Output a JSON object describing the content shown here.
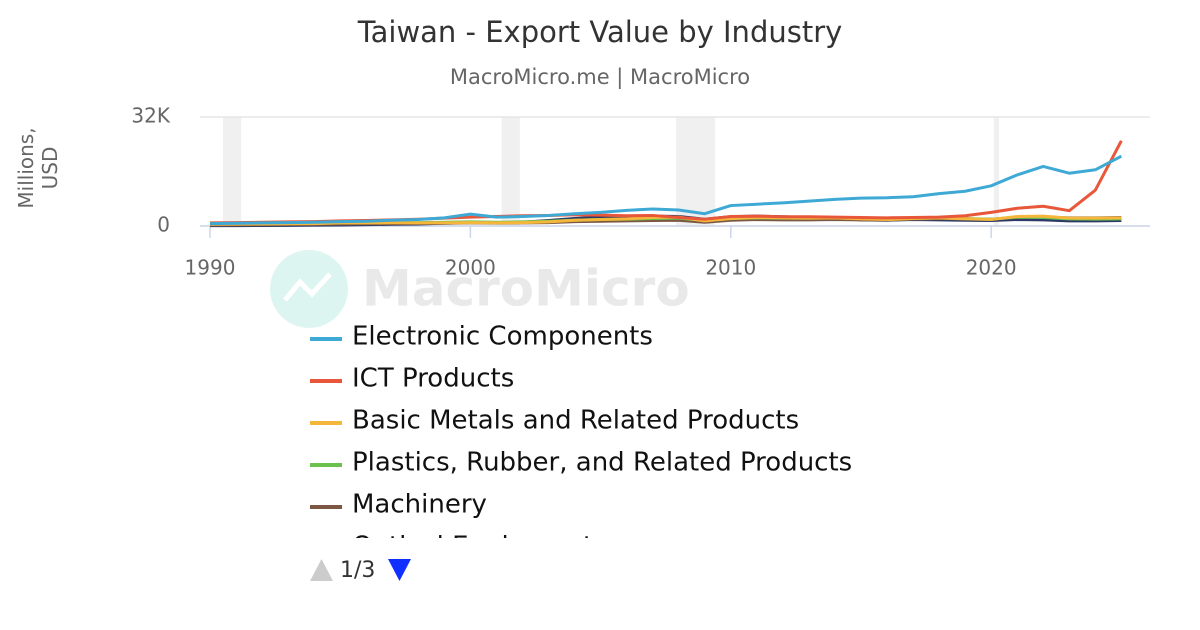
{
  "chart_data": {
    "type": "line",
    "title": "Taiwan - Export Value by Industry",
    "subtitle": "MacroMicro.me | MacroMicro",
    "watermark": "MacroMicro",
    "y_label": "Millions, USD",
    "legend_page": "1/3",
    "x": [
      1990,
      1991,
      1992,
      1993,
      1994,
      1995,
      1996,
      1997,
      1998,
      1999,
      2000,
      2001,
      2002,
      2003,
      2004,
      2005,
      2006,
      2007,
      2008,
      2009,
      2010,
      2011,
      2012,
      2013,
      2014,
      2015,
      2016,
      2017,
      2018,
      2019,
      2020,
      2021,
      2022,
      2023,
      2024,
      2025
    ],
    "xlim": [
      1990,
      2026.1
    ],
    "xticks": [
      1990,
      2000,
      2010,
      2020
    ],
    "ylim": [
      0,
      32000
    ],
    "yticks": [
      0,
      {
        "value": 32000,
        "label": "32K"
      }
    ],
    "recessions": [
      [
        1990.5,
        1991.2
      ],
      [
        2001.2,
        2001.9
      ],
      [
        2007.9,
        2009.4
      ],
      [
        2020.1,
        2020.3
      ]
    ],
    "series": [
      {
        "name": "Electronic Components",
        "color": "#3fa9d6",
        "values": [
          700,
          800,
          900,
          1000,
          1100,
          1300,
          1400,
          1700,
          1900,
          2400,
          3500,
          2600,
          2800,
          3100,
          3600,
          4000,
          4600,
          5000,
          4700,
          3600,
          6000,
          6400,
          6800,
          7300,
          7800,
          8200,
          8300,
          8600,
          9500,
          10200,
          11800,
          15000,
          17500,
          15500,
          16500,
          20500
        ]
      },
      {
        "name": "ICT Products",
        "color": "#e8573a",
        "values": [
          900,
          1000,
          1100,
          1200,
          1300,
          1500,
          1600,
          1800,
          2000,
          2300,
          2600,
          2800,
          3000,
          3100,
          3300,
          3200,
          3000,
          3100,
          2500,
          2000,
          2800,
          2900,
          2700,
          2700,
          2600,
          2500,
          2400,
          2500,
          2600,
          3000,
          4000,
          5200,
          5800,
          4500,
          10500,
          25000
        ]
      },
      {
        "name": "Basic Metals and Related Products",
        "color": "#f4b73b",
        "values": [
          500,
          550,
          600,
          650,
          700,
          900,
          900,
          950,
          900,
          900,
          1000,
          900,
          1000,
          1200,
          1700,
          1900,
          2100,
          2500,
          2600,
          1500,
          2200,
          2500,
          2400,
          2300,
          2400,
          2100,
          1900,
          2200,
          2400,
          2100,
          1900,
          2800,
          2900,
          2300,
          2300,
          2400
        ]
      },
      {
        "name": "Plastics, Rubber, and Related Products",
        "color": "#6cc14d",
        "values": [
          600,
          650,
          700,
          750,
          800,
          950,
          1000,
          1050,
          1000,
          1100,
          1200,
          1100,
          1200,
          1400,
          1700,
          1900,
          2000,
          2200,
          2300,
          1600,
          2200,
          2400,
          2300,
          2300,
          2400,
          2200,
          2000,
          2200,
          2400,
          2200,
          2000,
          2600,
          2500,
          2100,
          2000,
          2100
        ]
      },
      {
        "name": "Machinery",
        "color": "#7b5744",
        "values": [
          300,
          350,
          400,
          450,
          500,
          600,
          650,
          700,
          750,
          800,
          900,
          850,
          900,
          1000,
          1300,
          1400,
          1500,
          1600,
          1700,
          1100,
          1700,
          1900,
          1800,
          1800,
          1900,
          1800,
          1800,
          2000,
          2200,
          2100,
          2000,
          2500,
          2600,
          2400,
          2400,
          2500
        ]
      },
      {
        "name": "Optical Equipment",
        "color": "#2b3a67",
        "values": [
          100,
          100,
          150,
          200,
          250,
          300,
          400,
          500,
          600,
          800,
          1000,
          900,
          1100,
          1600,
          2200,
          2600,
          2700,
          2900,
          2800,
          2000,
          2700,
          2900,
          2700,
          2500,
          2300,
          1800,
          1700,
          1900,
          1800,
          1700,
          1600,
          1900,
          1800,
          1500,
          1500,
          1600
        ]
      }
    ]
  }
}
